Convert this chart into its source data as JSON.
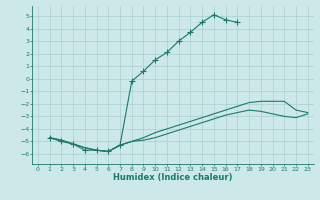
{
  "xlabel": "Humidex (Indice chaleur)",
  "background_color": "#cde8e8",
  "grid_color": "#aacfcf",
  "line_color": "#1a7a6a",
  "xlim": [
    -0.5,
    23.5
  ],
  "ylim": [
    -6.8,
    5.8
  ],
  "xticks": [
    0,
    1,
    2,
    3,
    4,
    5,
    6,
    7,
    8,
    9,
    10,
    11,
    12,
    13,
    14,
    15,
    16,
    17,
    18,
    19,
    20,
    21,
    22,
    23
  ],
  "yticks": [
    -6,
    -5,
    -4,
    -3,
    -2,
    -1,
    0,
    1,
    2,
    3,
    4,
    5
  ],
  "line1_x": [
    1,
    2,
    3,
    4,
    5,
    6,
    7,
    8,
    9,
    10,
    11,
    12,
    13,
    14,
    15,
    16,
    17
  ],
  "line1_y": [
    -4.7,
    -5.0,
    -5.2,
    -5.7,
    -5.7,
    -5.8,
    -5.3,
    -0.2,
    0.6,
    1.5,
    2.1,
    3.0,
    3.7,
    4.5,
    5.1,
    4.7,
    4.5
  ],
  "line2_x": [
    1,
    2,
    3,
    4,
    5,
    6,
    7,
    8,
    9,
    10,
    11,
    12,
    13,
    14,
    15,
    16,
    17,
    18,
    19,
    20,
    21,
    22,
    23
  ],
  "line2_y": [
    -4.7,
    -4.9,
    -5.2,
    -5.5,
    -5.7,
    -5.8,
    -5.3,
    -5.0,
    -4.7,
    -4.3,
    -4.0,
    -3.7,
    -3.4,
    -3.1,
    -2.8,
    -2.5,
    -2.2,
    -1.9,
    -1.8,
    -1.8,
    -1.8,
    -2.5,
    -2.7
  ],
  "line3_x": [
    1,
    2,
    3,
    4,
    5,
    6,
    7,
    8,
    9,
    10,
    11,
    12,
    13,
    14,
    15,
    16,
    17,
    18,
    19,
    20,
    21,
    22,
    23
  ],
  "line3_y": [
    -4.7,
    -4.9,
    -5.2,
    -5.5,
    -5.7,
    -5.8,
    -5.3,
    -5.0,
    -4.9,
    -4.7,
    -4.4,
    -4.1,
    -3.8,
    -3.5,
    -3.2,
    -2.9,
    -2.7,
    -2.5,
    -2.6,
    -2.8,
    -3.0,
    -3.1,
    -2.8
  ]
}
